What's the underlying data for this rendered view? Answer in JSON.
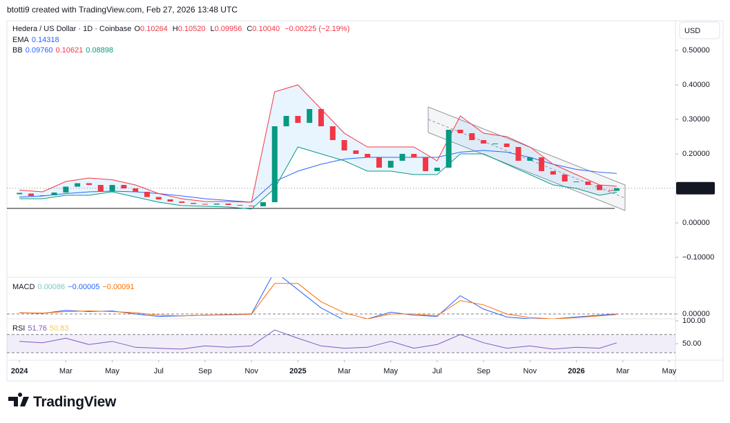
{
  "header": {
    "credit": "btotti9 created with TradingView.com, Feb 27, 2026 13:48 UTC",
    "currency": "USD",
    "logo": "TradingView"
  },
  "chart_data": [
    {
      "type": "candle",
      "title": "Hedera / US Dollar · 1D · Coinbase",
      "ohlc": [
        {
          "label": "O",
          "value": "0.10264"
        },
        {
          "label": "H",
          "value": "0.10520"
        },
        {
          "label": "L",
          "value": "0.09956"
        },
        {
          "label": "C",
          "value": "0.10040"
        }
      ],
      "change": "−0.00225 (−2.19%)",
      "up_color": "#089981",
      "down_color": "#f23645",
      "x": [
        0,
        0.5,
        1,
        1.5,
        2,
        2.5,
        3,
        3.5,
        4,
        4.5,
        5,
        5.5,
        6,
        6.5,
        7,
        7.5,
        8,
        8.5,
        9,
        9.5,
        10,
        10.5,
        11,
        11.5,
        12,
        12.5,
        13,
        13.5,
        14,
        14.5,
        15,
        15.5,
        16,
        16.5,
        17,
        17.5,
        18,
        18.5,
        19,
        19.5,
        20,
        20.5,
        21,
        21.5,
        22,
        22.5,
        23,
        23.5,
        24,
        24.5,
        25,
        25.5,
        25.74
      ],
      "values": [
        0.085,
        0.078,
        0.08,
        0.088,
        0.105,
        0.115,
        0.11,
        0.092,
        0.11,
        0.1,
        0.09,
        0.075,
        0.068,
        0.062,
        0.058,
        0.055,
        0.053,
        0.056,
        0.052,
        0.05,
        0.048,
        0.06,
        0.28,
        0.31,
        0.29,
        0.33,
        0.28,
        0.24,
        0.21,
        0.2,
        0.19,
        0.16,
        0.18,
        0.2,
        0.19,
        0.15,
        0.16,
        0.27,
        0.26,
        0.24,
        0.23,
        0.23,
        0.22,
        0.18,
        0.19,
        0.15,
        0.14,
        0.12,
        0.12,
        0.11,
        0.095,
        0.093,
        0.1004
      ],
      "last_price": {
        "value": 0.1004,
        "label": "0.10040"
      },
      "xlim": [
        -0.54,
        28.27
      ],
      "xticks": [
        {
          "value": 0,
          "label": "2024"
        },
        {
          "value": 2,
          "label": "Mar"
        },
        {
          "value": 4,
          "label": "May"
        },
        {
          "value": 6,
          "label": "Jul"
        },
        {
          "value": 8,
          "label": "Sep"
        },
        {
          "value": 10,
          "label": "Nov"
        },
        {
          "value": 12,
          "label": "2025"
        },
        {
          "value": 14,
          "label": "Mar"
        },
        {
          "value": 16,
          "label": "May"
        },
        {
          "value": 18,
          "label": "Jul"
        },
        {
          "value": 20,
          "label": "Sep"
        },
        {
          "value": 22,
          "label": "Nov"
        },
        {
          "value": 24,
          "label": "2026"
        },
        {
          "value": 26,
          "label": "Mar"
        },
        {
          "value": 28,
          "label": "May"
        }
      ],
      "ylim": [
        -0.158,
        0.586
      ],
      "yticks": [
        {
          "value": 0.5,
          "label": "0.50000"
        },
        {
          "value": 0.4,
          "label": "0.40000"
        },
        {
          "value": 0.3,
          "label": "0.30000"
        },
        {
          "value": 0.2,
          "label": "0.20000"
        },
        {
          "value": 0,
          "label": "0.00000"
        },
        {
          "value": -0.1,
          "label": "−0.10000"
        }
      ],
      "indicators": [
        {
          "name": "EMA",
          "legend": [
            "0.14318"
          ],
          "legend_colors": [
            "#2962ff"
          ],
          "x": [
            0,
            1,
            2,
            3,
            4,
            5,
            6,
            7,
            8,
            9,
            10,
            11,
            12,
            13,
            14,
            15,
            16,
            17,
            18,
            19,
            20,
            21,
            22,
            23,
            24,
            25,
            25.74
          ],
          "lines": [
            {
              "color": "#2962ff",
              "values": [
                0.075,
                0.078,
                0.085,
                0.09,
                0.092,
                0.09,
                0.085,
                0.078,
                0.07,
                0.065,
                0.06,
                0.12,
                0.15,
                0.17,
                0.185,
                0.19,
                0.19,
                0.19,
                0.19,
                0.205,
                0.21,
                0.205,
                0.19,
                0.17,
                0.155,
                0.147,
                0.14318
              ]
            }
          ]
        },
        {
          "name": "BB",
          "legend": [
            "0.09760",
            "0.10621",
            "0.08898"
          ],
          "legend_colors": [
            "#2962ff",
            "#f23645",
            "#089981"
          ],
          "x": [
            0,
            1,
            2,
            3,
            4,
            5,
            6,
            7,
            8,
            9,
            10,
            11,
            12,
            13,
            14,
            15,
            16,
            17,
            18,
            19,
            20,
            21,
            22,
            23,
            24,
            25,
            25.74
          ],
          "fill": "rgba(33,150,243,0.1)",
          "lines": [
            {
              "color": "#f23645",
              "values": [
                0.095,
                0.09,
                0.12,
                0.13,
                0.125,
                0.11,
                0.085,
                0.07,
                0.062,
                0.062,
                0.06,
                0.38,
                0.4,
                0.33,
                0.26,
                0.22,
                0.22,
                0.22,
                0.18,
                0.31,
                0.26,
                0.25,
                0.22,
                0.17,
                0.14,
                0.11,
                0.10621
              ]
            },
            {
              "color": "#089981",
              "values": [
                0.07,
                0.07,
                0.08,
                0.08,
                0.09,
                0.075,
                0.06,
                0.05,
                0.048,
                0.046,
                0.04,
                0.1,
                0.22,
                0.2,
                0.18,
                0.15,
                0.15,
                0.14,
                0.14,
                0.2,
                0.2,
                0.17,
                0.14,
                0.11,
                0.1,
                0.08,
                0.08898
              ]
            }
          ]
        }
      ]
    },
    {
      "type": "line",
      "title": "MACD",
      "legend": [
        "0.00086",
        "−0.00005",
        "−0.00091"
      ],
      "legend_colors": [
        "#7fc7c0",
        "#2962ff",
        "#ff6d00"
      ],
      "x": [
        0,
        1,
        2,
        3,
        4,
        5,
        6,
        7,
        8,
        9,
        10,
        11,
        12,
        13,
        14,
        15,
        16,
        17,
        18,
        19,
        20,
        21,
        22,
        23,
        24,
        25,
        25.74
      ],
      "series": [
        {
          "color": "#2962ff",
          "values": [
            0.002,
            0.001,
            0.006,
            0.004,
            0.005,
            0,
            -0.004,
            -0.003,
            -0.002,
            -0.001,
            0,
            0.07,
            0.04,
            0.01,
            -0.01,
            -0.008,
            0.003,
            -0.002,
            -0.004,
            0.03,
            0.008,
            -0.005,
            -0.008,
            -0.008,
            -0.005,
            -0.002,
            -5e-05
          ]
        },
        {
          "color": "#ff6d00",
          "values": [
            0.002,
            0.0015,
            0.004,
            0.005,
            0.004,
            0.002,
            -0.002,
            -0.003,
            -0.002,
            -0.0015,
            -0.0005,
            0.05,
            0.05,
            0.02,
            0.002,
            -0.008,
            0,
            0,
            -0.003,
            0.022,
            0.015,
            0,
            -0.006,
            -0.008,
            -0.006,
            -0.003,
            -0.00091
          ]
        }
      ],
      "ylim": [
        -0.0079,
        0.06
      ],
      "yticks": [
        {
          "value": 0,
          "label": "0.00000"
        }
      ]
    },
    {
      "type": "line",
      "title": "RSI",
      "legend": [
        "51.76",
        "50.83"
      ],
      "legend_colors": [
        "#7e57c2",
        "#f7c948"
      ],
      "x": [
        0,
        1,
        2,
        3,
        4,
        5,
        6,
        7,
        8,
        9,
        10,
        11,
        12,
        13,
        14,
        15,
        16,
        17,
        18,
        19,
        20,
        21,
        22,
        23,
        24,
        25,
        25.74
      ],
      "series": [
        {
          "color": "#7e57c2",
          "values": [
            55,
            52,
            62,
            48,
            55,
            42,
            40,
            38,
            45,
            42,
            45,
            80,
            62,
            45,
            40,
            42,
            55,
            40,
            48,
            70,
            52,
            40,
            45,
            38,
            42,
            40,
            51.76
          ]
        }
      ],
      "bands": [
        70,
        30
      ],
      "ylim": [
        13.6,
        104.5
      ],
      "yticks": [
        {
          "value": 100,
          "label": "100.00"
        },
        {
          "value": 50,
          "label": "50.00"
        }
      ]
    }
  ]
}
